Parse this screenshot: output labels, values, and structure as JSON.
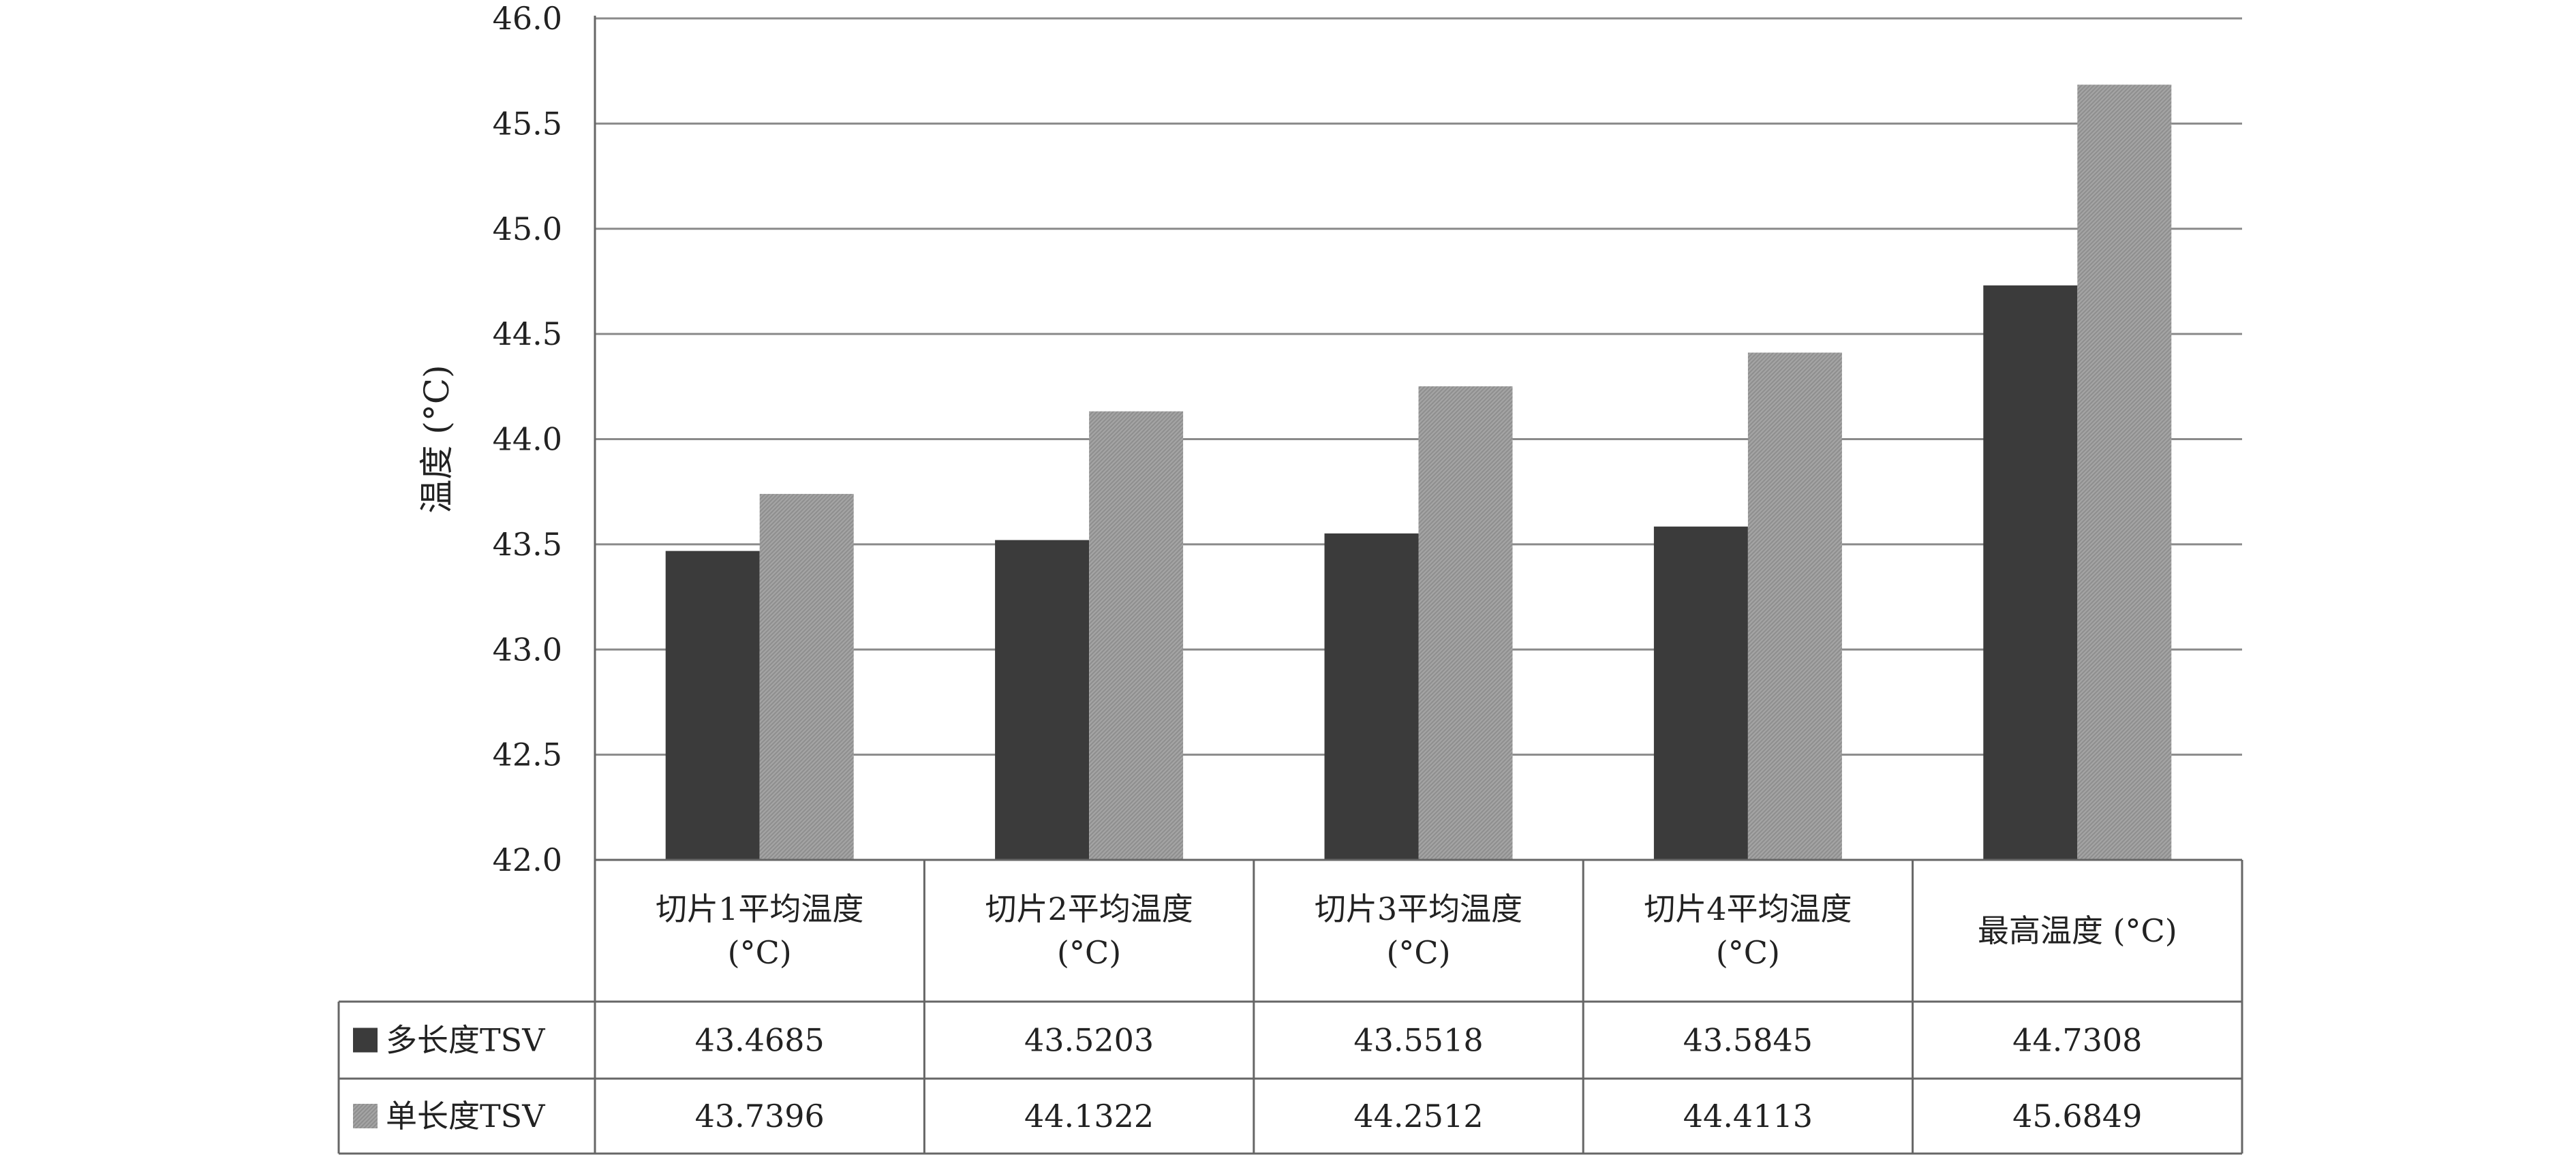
{
  "chart_data": {
    "type": "bar",
    "ylabel": "温度 (°C)",
    "ylim": [
      42.0,
      46.0
    ],
    "yticks": [
      "42.0",
      "42.5",
      "43.0",
      "43.5",
      "44.0",
      "44.5",
      "45.0",
      "45.5",
      "46.0"
    ],
    "grid": true,
    "categories": [
      [
        "切片1平均温度",
        "(°C)"
      ],
      [
        "切片2平均温度",
        "(°C)"
      ],
      [
        "切片3平均温度",
        "(°C)"
      ],
      [
        "切片4平均温度",
        "(°C)"
      ],
      [
        "最高温度 (°C)"
      ]
    ],
    "series": [
      {
        "name": "多长度TSV",
        "color": "#3b3b3b",
        "values": [
          43.4685,
          43.5203,
          43.5518,
          43.5845,
          44.7308
        ],
        "labels": [
          "43.4685",
          "43.5203",
          "43.5518",
          "43.5845",
          "44.7308"
        ]
      },
      {
        "name": "单长度TSV",
        "color": "#a0a0a0",
        "values": [
          43.7396,
          44.1322,
          44.2512,
          44.4113,
          45.6849
        ],
        "labels": [
          "43.7396",
          "44.1322",
          "44.2512",
          "44.4113",
          "45.6849"
        ]
      }
    ],
    "legend": "data-table"
  }
}
